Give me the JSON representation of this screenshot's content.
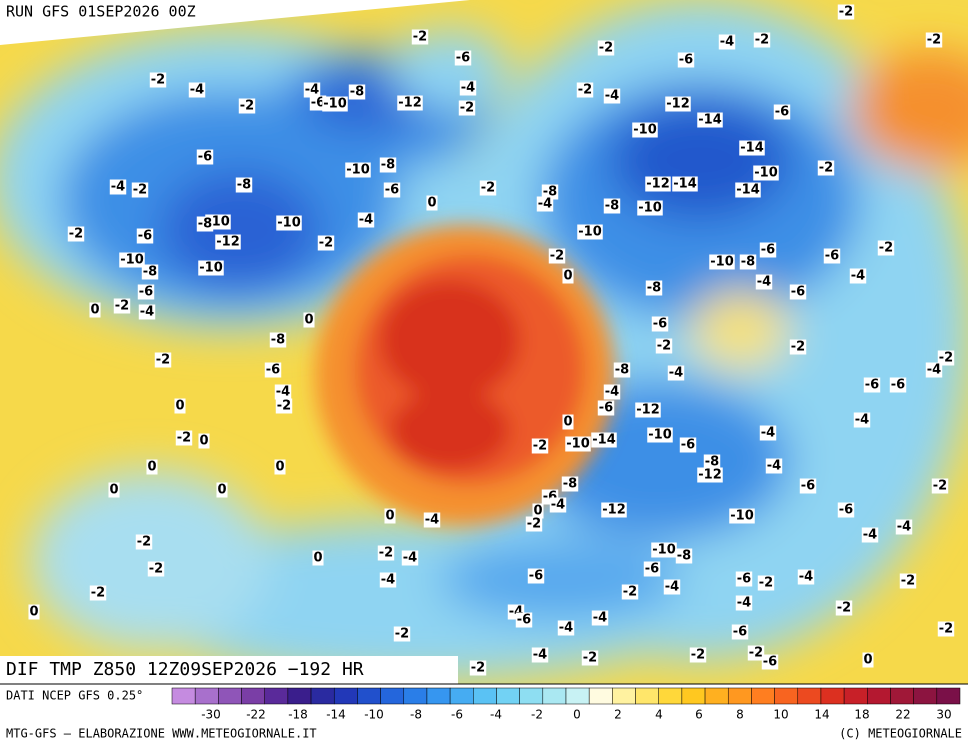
{
  "header": {
    "run": "RUN GFS 01SEP2026 00Z"
  },
  "map": {
    "labels": [
      -2,
      -6,
      -2,
      -6,
      -4,
      -2,
      -2,
      -2,
      -2,
      -4,
      -2,
      -4,
      -6,
      -10,
      -8,
      -12,
      -4,
      -2,
      -2,
      -4,
      -12,
      -14,
      -6,
      -10,
      -14,
      -6,
      -10,
      -8,
      -8,
      -6,
      -4,
      -2,
      -2,
      -10,
      -12,
      -14,
      -14,
      -2,
      -8,
      -4,
      0,
      -8,
      -10,
      -4,
      -10,
      -8,
      -10,
      -2,
      -6,
      -2,
      -12,
      -10,
      -6,
      -2,
      -10,
      -2,
      -8,
      -10,
      -10,
      -8,
      -6,
      -4,
      0,
      -4,
      -6,
      -8,
      -6,
      -2,
      -4,
      0,
      0,
      -6,
      -8,
      -2,
      -2,
      -2,
      -6,
      -8,
      -4,
      -2,
      -4,
      -6,
      -6,
      -4,
      -2,
      -4,
      0,
      -6,
      -12,
      -4,
      0,
      -2,
      0,
      -2,
      -10,
      -14,
      -10,
      -6,
      -4,
      0,
      0,
      -8,
      -12,
      -4,
      0,
      0,
      -8,
      -6,
      -6,
      -2,
      0,
      -4,
      -12,
      -10,
      -6,
      0,
      -4,
      -2,
      -4,
      -4,
      -2,
      -10,
      -8,
      -2,
      -4,
      0,
      -2,
      -6,
      -6,
      -4,
      -6,
      -2,
      -4,
      -2,
      -2,
      -2,
      -4,
      -4,
      -2,
      0,
      -4,
      -6,
      -4,
      -4,
      -2,
      -6,
      -2,
      -4,
      -2,
      -2,
      -2,
      -6,
      0,
      -2
    ]
  },
  "footer": {
    "title": "DIF TMP Z850 12Z09SEP2026 −192 HR",
    "source": "DATI NCEP GFS 0.25°",
    "credit": "MTG-GFS – ELABORAZIONE WWW.METEOGIORNALE.IT",
    "copyright": "(C) METEOGIORNALE"
  },
  "colorbar": {
    "labels": [
      -30,
      -22,
      -18,
      -14,
      -10,
      -8,
      -6,
      -4,
      -2,
      0,
      2,
      4,
      6,
      8,
      10,
      14,
      18,
      22,
      30
    ]
  }
}
